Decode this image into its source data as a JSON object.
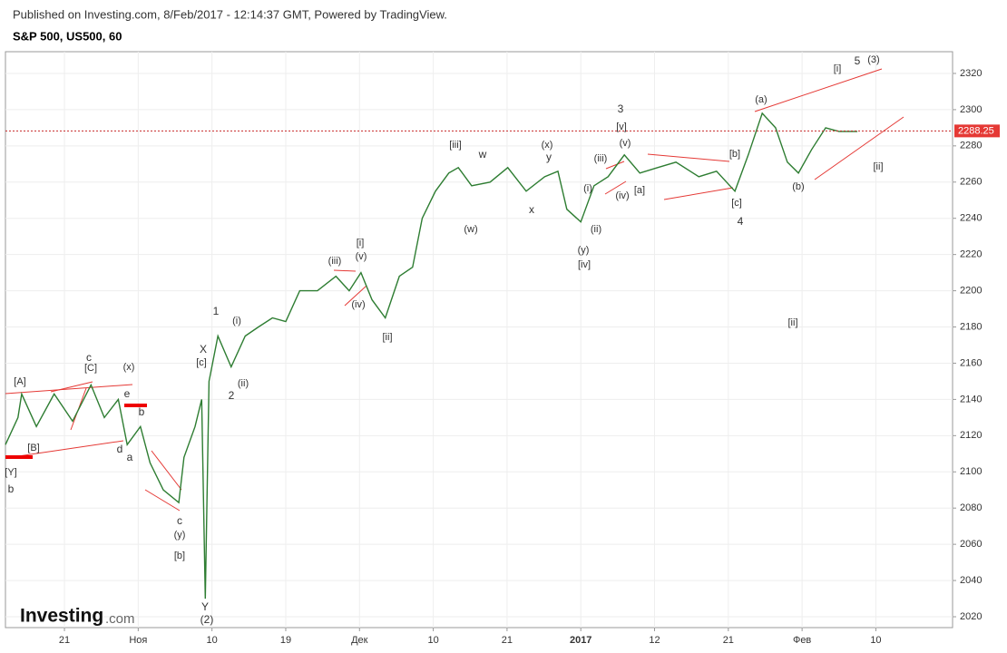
{
  "header": {
    "published": "Published on Investing.com, 8/Feb/2017 - 12:14:37 GMT, Powered by TradingView.",
    "symbol": "S&P 500, US500, 60"
  },
  "logo": {
    "name": "Investing",
    "suffix": ".com"
  },
  "chart_data": {
    "type": "line",
    "color": "#2e7d32",
    "x": [
      -0.8,
      -0.63,
      -0.58,
      -0.38,
      -0.14,
      0.11,
      0.36,
      0.54,
      0.73,
      0.85,
      1.03,
      1.16,
      1.34,
      1.55,
      1.62,
      1.77,
      1.86,
      1.91,
      1.96,
      2.08,
      2.26,
      2.45,
      2.63,
      2.82,
      3.0,
      3.19,
      3.43,
      3.68,
      3.86,
      4.02,
      4.17,
      4.35,
      4.54,
      4.72,
      4.85,
      5.03,
      5.21,
      5.34,
      5.52,
      5.77,
      6.01,
      6.26,
      6.51,
      6.69,
      6.81,
      7.0,
      7.18,
      7.37,
      7.59,
      7.8,
      8.04,
      8.29,
      8.6,
      8.84,
      9.09,
      9.27,
      9.46,
      9.64,
      9.8,
      9.95,
      10.13,
      10.32,
      10.5,
      10.75
    ],
    "values": [
      2115,
      2130,
      2143,
      2125,
      2143,
      2128,
      2148,
      2130,
      2140,
      2115,
      2125,
      2105,
      2090,
      2083,
      2108,
      2125,
      2140,
      2030,
      2150,
      2175,
      2158,
      2175,
      2180,
      2185,
      2183,
      2200,
      2200,
      2208,
      2200,
      2210,
      2195,
      2185,
      2208,
      2213,
      2240,
      2255,
      2265,
      2268,
      2258,
      2260,
      2268,
      2255,
      2263,
      2266,
      2245,
      2238,
      2258,
      2263,
      2275,
      2265,
      2268,
      2271,
      2263,
      2266,
      2255,
      2275,
      2298,
      2290,
      2271,
      2265,
      2278,
      2290,
      2288,
      2288
    ],
    "xlim": [
      -0.8,
      12.04
    ],
    "xticks": [
      {
        "value": 0,
        "label": "21"
      },
      {
        "value": 1,
        "label": "Ноя"
      },
      {
        "value": 2,
        "label": "10"
      },
      {
        "value": 3,
        "label": "19"
      },
      {
        "value": 4,
        "label": "Дек"
      },
      {
        "value": 5,
        "label": "10"
      },
      {
        "value": 6,
        "label": "21"
      },
      {
        "value": 7,
        "label": "2017"
      },
      {
        "value": 8,
        "label": "12"
      },
      {
        "value": 9,
        "label": "21"
      },
      {
        "value": 10,
        "label": "Фев"
      },
      {
        "value": 11,
        "label": "10"
      }
    ],
    "ylim": [
      2014,
      2332
    ],
    "yticks": [
      2020,
      2040,
      2060,
      2080,
      2100,
      2120,
      2140,
      2160,
      2180,
      2200,
      2220,
      2240,
      2260,
      2280,
      2300,
      2320
    ],
    "last_price": 2288.25,
    "grid": true,
    "annotations": [
      "[A]",
      "[B]",
      "[Y]",
      "b",
      "c",
      "[C]",
      "(x)",
      "e",
      "b",
      "d",
      "a",
      "c",
      "(y)",
      "[b]",
      "Y",
      "(2)",
      "X",
      "[c]",
      "1",
      "(i)",
      "(ii)",
      "2",
      "(iii)",
      "(iv)",
      "(v)",
      "[i]",
      "[ii]",
      "[iii]",
      "w",
      "(w)",
      "x",
      "(x)",
      "y",
      "(y)",
      "[iv]",
      "(iii)",
      "(i)",
      "(ii)",
      "(iv)",
      "(v)",
      "[v]",
      "3",
      "[a]",
      "[b]",
      "[c]",
      "4",
      "(a)",
      "(b)",
      "[i]",
      "5",
      "(3)",
      "[ii]",
      "[ii]"
    ]
  }
}
